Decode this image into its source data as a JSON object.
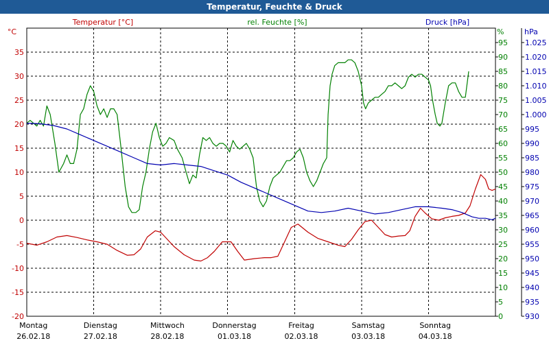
{
  "title": "Temperatur, Feuchte & Druck",
  "colors": {
    "temperature": "#c00000",
    "humidity": "#008000",
    "pressure": "#0000b0",
    "grid": "#000000",
    "titlebar": "#1f5a96"
  },
  "chart_data": {
    "type": "line",
    "legend": {
      "temperature": "Temperatur [°C]",
      "humidity": "rel. Feuchte [%]",
      "pressure": "Druck [hPa]"
    },
    "axes": {
      "temperature": {
        "unit": "°C",
        "min": -20,
        "max": 40,
        "ticks": [
          "35",
          "30",
          "25",
          "20",
          "15",
          "10",
          "5",
          "0",
          "-5",
          "-10",
          "-15",
          "-20"
        ],
        "tick_values": [
          35,
          30,
          25,
          20,
          15,
          10,
          5,
          0,
          -5,
          -10,
          -15,
          -20
        ]
      },
      "humidity": {
        "unit": "%",
        "min": 0,
        "max": 100,
        "ticks": [
          "95",
          "90",
          "85",
          "80",
          "75",
          "70",
          "65",
          "60",
          "55",
          "50",
          "45",
          "40",
          "35",
          "30",
          "25",
          "20",
          "15",
          "10",
          "5",
          "0"
        ],
        "tick_values": [
          95,
          90,
          85,
          80,
          75,
          70,
          65,
          60,
          55,
          50,
          45,
          40,
          35,
          30,
          25,
          20,
          15,
          10,
          5,
          0
        ]
      },
      "pressure": {
        "unit": "hPa",
        "min": 930,
        "max": 1030,
        "ticks": [
          "1.025",
          "1.020",
          "1.015",
          "1.010",
          "1.005",
          "1.000",
          "995",
          "990",
          "985",
          "980",
          "975",
          "970",
          "965",
          "960",
          "955",
          "950",
          "945",
          "940",
          "935",
          "930"
        ],
        "tick_values": [
          1025,
          1020,
          1015,
          1010,
          1005,
          1000,
          995,
          990,
          985,
          980,
          975,
          970,
          965,
          960,
          955,
          950,
          945,
          940,
          935,
          930
        ]
      }
    },
    "x_range": [
      0,
      7
    ],
    "x_labels": [
      {
        "day": "Montag",
        "date": "26.02.18"
      },
      {
        "day": "Dienstag",
        "date": "27.02.18"
      },
      {
        "day": "Mittwoch",
        "date": "28.02.18"
      },
      {
        "day": "Donnerstag",
        "date": "01.03.18"
      },
      {
        "day": "Freitag",
        "date": "02.03.18"
      },
      {
        "day": "Samstag",
        "date": "03.03.18"
      },
      {
        "day": "Sonntag",
        "date": "04.03.18"
      }
    ],
    "series": [
      {
        "name": "Temperatur",
        "axis": "temperature",
        "points": [
          [
            0,
            -4.8
          ],
          [
            0.15,
            -5.2
          ],
          [
            0.3,
            -4.5
          ],
          [
            0.45,
            -3.5
          ],
          [
            0.6,
            -3.2
          ],
          [
            0.75,
            -3.6
          ],
          [
            0.9,
            -4.1
          ],
          [
            1.05,
            -4.5
          ],
          [
            1.2,
            -5.0
          ],
          [
            1.35,
            -6.3
          ],
          [
            1.5,
            -7.3
          ],
          [
            1.6,
            -7.2
          ],
          [
            1.7,
            -6.0
          ],
          [
            1.8,
            -3.5
          ],
          [
            1.92,
            -2.2
          ],
          [
            2.0,
            -2.5
          ],
          [
            2.1,
            -4.0
          ],
          [
            2.2,
            -5.5
          ],
          [
            2.35,
            -7.2
          ],
          [
            2.5,
            -8.3
          ],
          [
            2.6,
            -8.5
          ],
          [
            2.7,
            -7.8
          ],
          [
            2.8,
            -6.5
          ],
          [
            2.92,
            -4.5
          ],
          [
            3.05,
            -4.5
          ],
          [
            3.15,
            -6.5
          ],
          [
            3.25,
            -8.3
          ],
          [
            3.4,
            -8.0
          ],
          [
            3.55,
            -7.8
          ],
          [
            3.65,
            -7.8
          ],
          [
            3.75,
            -7.5
          ],
          [
            3.85,
            -4.5
          ],
          [
            3.95,
            -1.5
          ],
          [
            4.05,
            -0.8
          ],
          [
            4.2,
            -2.5
          ],
          [
            4.35,
            -3.8
          ],
          [
            4.5,
            -4.5
          ],
          [
            4.65,
            -5.2
          ],
          [
            4.75,
            -5.5
          ],
          [
            4.85,
            -4.0
          ],
          [
            4.95,
            -2.0
          ],
          [
            5.05,
            -0.3
          ],
          [
            5.15,
            0.0
          ],
          [
            5.25,
            -1.5
          ],
          [
            5.35,
            -3.0
          ],
          [
            5.45,
            -3.5
          ],
          [
            5.55,
            -3.3
          ],
          [
            5.65,
            -3.2
          ],
          [
            5.72,
            -2.2
          ],
          [
            5.8,
            0.8
          ],
          [
            5.88,
            2.5
          ],
          [
            5.95,
            1.5
          ],
          [
            6.05,
            0.3
          ],
          [
            6.15,
            0.0
          ],
          [
            6.25,
            0.5
          ],
          [
            6.35,
            0.8
          ],
          [
            6.45,
            1.0
          ],
          [
            6.55,
            1.5
          ],
          [
            6.62,
            3.0
          ],
          [
            6.7,
            6.5
          ],
          [
            6.78,
            9.5
          ],
          [
            6.85,
            8.5
          ],
          [
            6.9,
            6.5
          ],
          [
            6.95,
            6.2
          ],
          [
            7.0,
            6.5
          ]
        ]
      },
      {
        "name": "rel. Feuchte",
        "axis": "humidity",
        "points": [
          [
            0,
            67
          ],
          [
            0.05,
            68
          ],
          [
            0.1,
            67
          ],
          [
            0.15,
            66
          ],
          [
            0.2,
            68
          ],
          [
            0.25,
            66
          ],
          [
            0.3,
            73
          ],
          [
            0.35,
            70
          ],
          [
            0.42,
            60
          ],
          [
            0.48,
            50
          ],
          [
            0.55,
            53
          ],
          [
            0.6,
            56
          ],
          [
            0.65,
            53
          ],
          [
            0.7,
            53
          ],
          [
            0.75,
            58
          ],
          [
            0.8,
            70
          ],
          [
            0.85,
            72
          ],
          [
            0.9,
            77
          ],
          [
            0.95,
            80
          ],
          [
            1.0,
            78
          ],
          [
            1.05,
            73
          ],
          [
            1.1,
            70
          ],
          [
            1.15,
            72
          ],
          [
            1.2,
            69
          ],
          [
            1.25,
            72
          ],
          [
            1.3,
            72
          ],
          [
            1.35,
            70
          ],
          [
            1.4,
            60
          ],
          [
            1.47,
            45
          ],
          [
            1.52,
            38
          ],
          [
            1.57,
            36
          ],
          [
            1.63,
            36
          ],
          [
            1.68,
            37
          ],
          [
            1.73,
            45
          ],
          [
            1.78,
            50
          ],
          [
            1.83,
            58
          ],
          [
            1.88,
            64
          ],
          [
            1.93,
            67
          ],
          [
            1.98,
            62
          ],
          [
            2.03,
            59
          ],
          [
            2.08,
            60
          ],
          [
            2.13,
            62
          ],
          [
            2.2,
            61
          ],
          [
            2.25,
            58
          ],
          [
            2.32,
            55
          ],
          [
            2.38,
            50
          ],
          [
            2.43,
            46
          ],
          [
            2.48,
            49
          ],
          [
            2.53,
            48
          ],
          [
            2.58,
            56
          ],
          [
            2.63,
            62
          ],
          [
            2.68,
            61
          ],
          [
            2.73,
            62
          ],
          [
            2.78,
            60
          ],
          [
            2.83,
            59
          ],
          [
            2.88,
            60
          ],
          [
            2.93,
            60
          ],
          [
            2.98,
            59
          ],
          [
            3.03,
            57
          ],
          [
            3.08,
            61
          ],
          [
            3.13,
            59
          ],
          [
            3.18,
            58
          ],
          [
            3.23,
            59
          ],
          [
            3.28,
            60
          ],
          [
            3.33,
            58
          ],
          [
            3.38,
            55
          ],
          [
            3.43,
            45
          ],
          [
            3.48,
            40
          ],
          [
            3.53,
            38
          ],
          [
            3.58,
            40
          ],
          [
            3.63,
            45
          ],
          [
            3.68,
            48
          ],
          [
            3.73,
            49
          ],
          [
            3.78,
            50
          ],
          [
            3.83,
            52
          ],
          [
            3.88,
            54
          ],
          [
            3.93,
            54
          ],
          [
            3.98,
            55
          ],
          [
            4.03,
            57
          ],
          [
            4.08,
            58
          ],
          [
            4.13,
            55
          ],
          [
            4.18,
            50
          ],
          [
            4.23,
            47
          ],
          [
            4.28,
            45
          ],
          [
            4.33,
            47
          ],
          [
            4.38,
            50
          ],
          [
            4.43,
            53
          ],
          [
            4.48,
            55
          ],
          [
            4.5,
            70
          ],
          [
            4.53,
            80
          ],
          [
            4.56,
            84
          ],
          [
            4.6,
            87
          ],
          [
            4.65,
            88
          ],
          [
            4.7,
            88
          ],
          [
            4.75,
            88
          ],
          [
            4.8,
            89
          ],
          [
            4.85,
            89
          ],
          [
            4.9,
            88
          ],
          [
            4.95,
            85
          ],
          [
            5.0,
            80
          ],
          [
            5.03,
            74
          ],
          [
            5.06,
            72
          ],
          [
            5.1,
            74
          ],
          [
            5.15,
            75
          ],
          [
            5.2,
            76
          ],
          [
            5.25,
            76
          ],
          [
            5.3,
            77
          ],
          [
            5.35,
            78
          ],
          [
            5.4,
            80
          ],
          [
            5.45,
            80
          ],
          [
            5.5,
            81
          ],
          [
            5.55,
            80
          ],
          [
            5.6,
            79
          ],
          [
            5.65,
            80
          ],
          [
            5.7,
            83
          ],
          [
            5.75,
            84
          ],
          [
            5.8,
            83
          ],
          [
            5.85,
            84
          ],
          [
            5.9,
            84
          ],
          [
            5.95,
            83
          ],
          [
            6.0,
            82
          ],
          [
            6.03,
            80
          ],
          [
            6.06,
            75
          ],
          [
            6.1,
            70
          ],
          [
            6.13,
            67
          ],
          [
            6.17,
            66
          ],
          [
            6.2,
            67
          ],
          [
            6.25,
            74
          ],
          [
            6.3,
            80
          ],
          [
            6.35,
            81
          ],
          [
            6.4,
            81
          ],
          [
            6.45,
            78
          ],
          [
            6.5,
            76
          ],
          [
            6.55,
            76
          ],
          [
            6.6,
            85
          ]
        ]
      },
      {
        "name": "Druck",
        "axis": "pressure",
        "points": [
          [
            0,
            997
          ],
          [
            0.2,
            996.8
          ],
          [
            0.4,
            996.2
          ],
          [
            0.6,
            995
          ],
          [
            0.8,
            993
          ],
          [
            1.0,
            991
          ],
          [
            1.2,
            989
          ],
          [
            1.4,
            987
          ],
          [
            1.6,
            985
          ],
          [
            1.8,
            983
          ],
          [
            2.0,
            982.5
          ],
          [
            2.2,
            983
          ],
          [
            2.4,
            982.5
          ],
          [
            2.6,
            982
          ],
          [
            2.8,
            980.5
          ],
          [
            3.0,
            979
          ],
          [
            3.2,
            976.5
          ],
          [
            3.4,
            974.5
          ],
          [
            3.6,
            972.5
          ],
          [
            3.8,
            970.5
          ],
          [
            4.0,
            968.5
          ],
          [
            4.2,
            966.5
          ],
          [
            4.4,
            966
          ],
          [
            4.6,
            966.5
          ],
          [
            4.8,
            967.5
          ],
          [
            5.0,
            966.5
          ],
          [
            5.2,
            965.5
          ],
          [
            5.4,
            966
          ],
          [
            5.6,
            967
          ],
          [
            5.8,
            968
          ],
          [
            6.0,
            968
          ],
          [
            6.2,
            967.5
          ],
          [
            6.35,
            967
          ],
          [
            6.5,
            966
          ],
          [
            6.65,
            964.5
          ],
          [
            6.75,
            964
          ],
          [
            6.85,
            964
          ],
          [
            6.95,
            963.5
          ],
          [
            7.0,
            964
          ]
        ]
      }
    ]
  }
}
